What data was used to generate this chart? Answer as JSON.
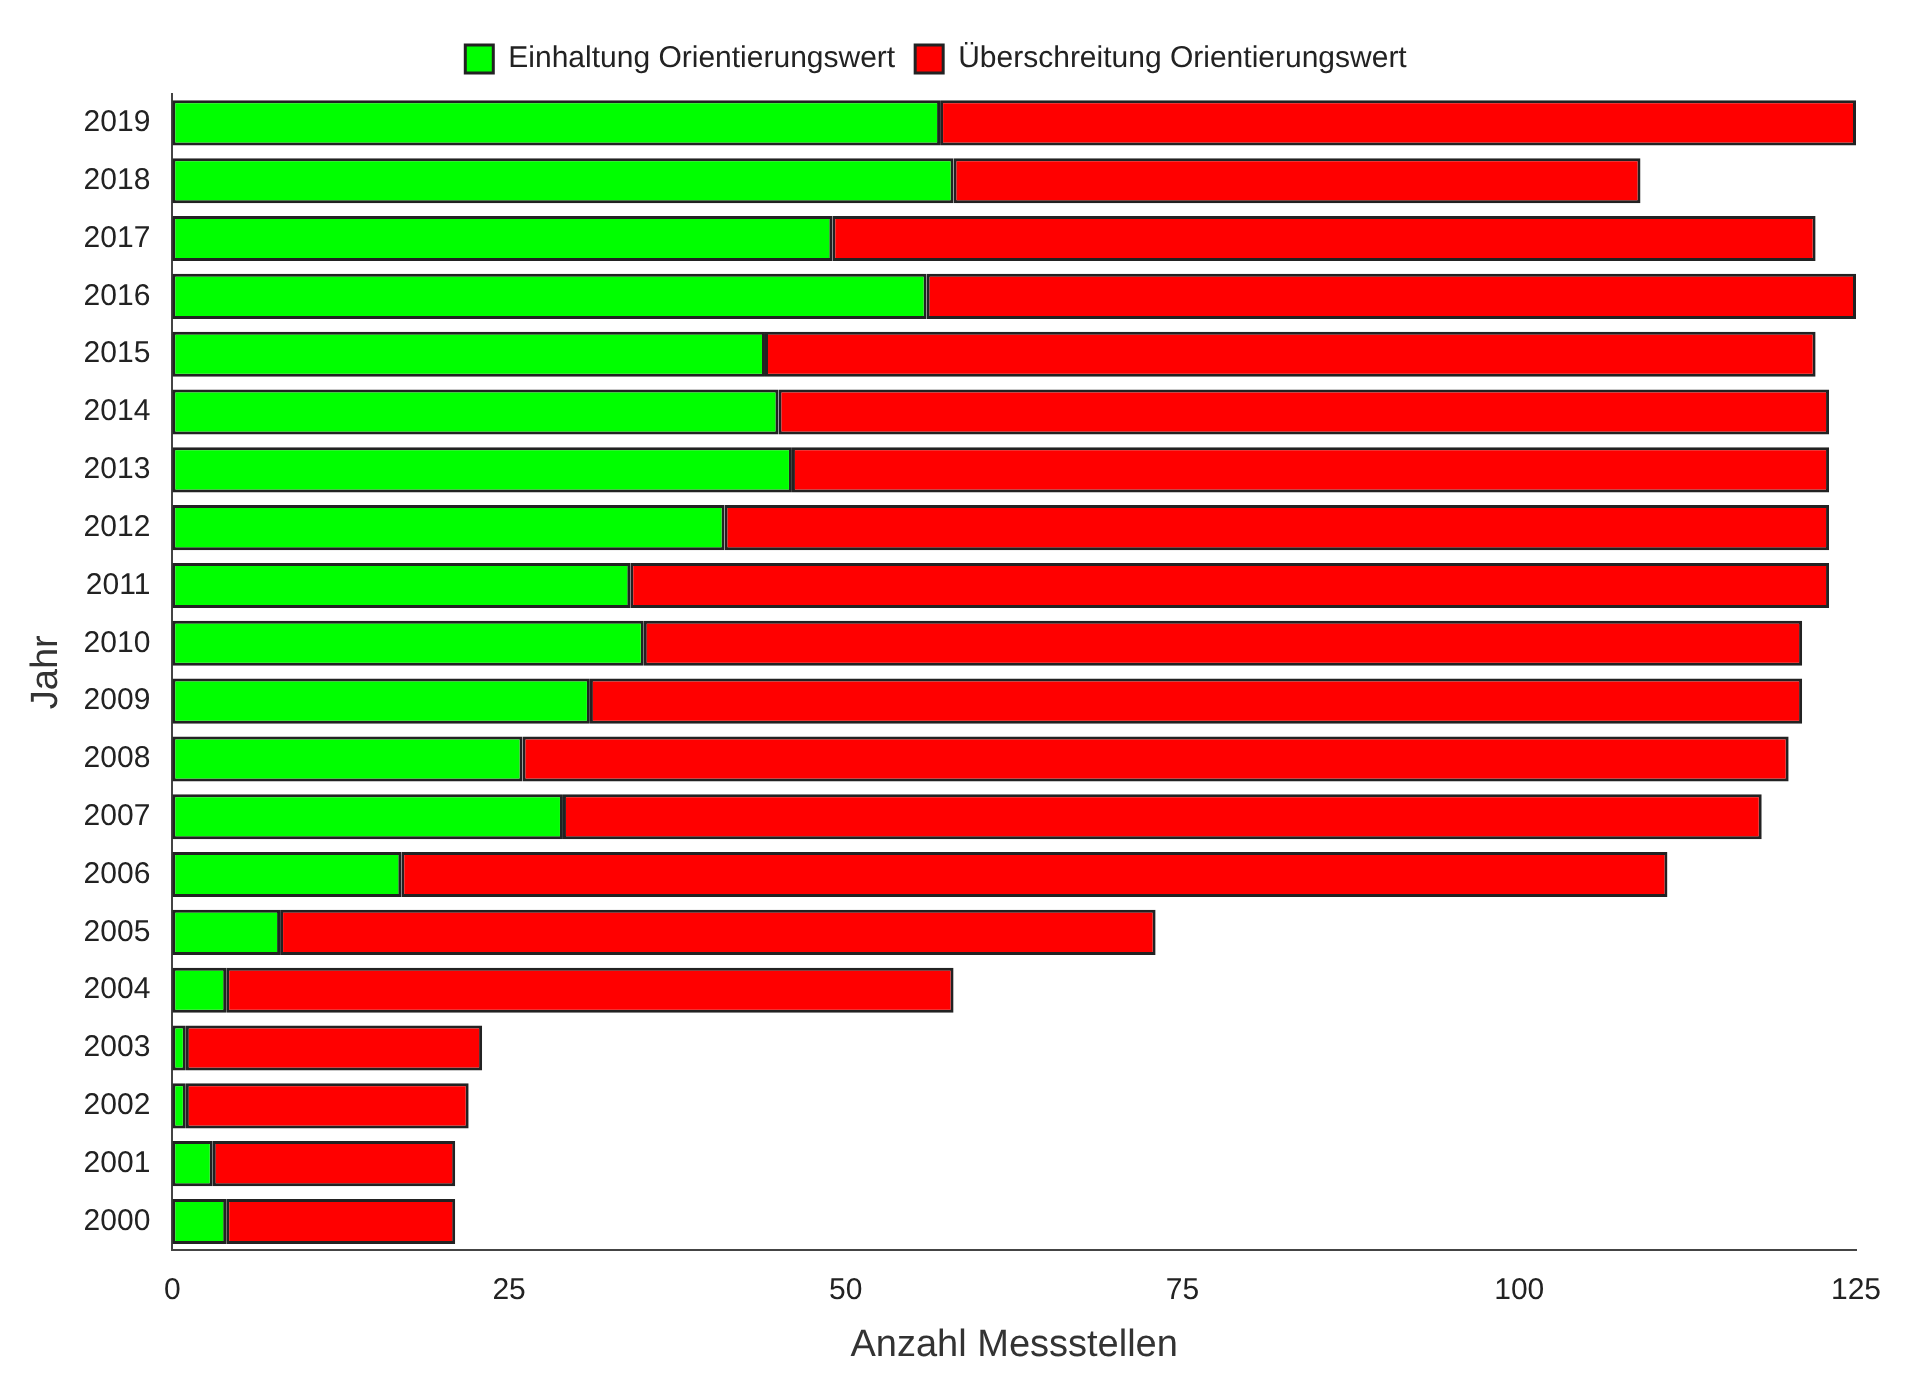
{
  "chart_data": {
    "type": "bar",
    "orientation": "horizontal",
    "stacked": true,
    "xlabel": "Anzahl Messstellen",
    "ylabel": "Jahr",
    "categories": [
      "2019",
      "2018",
      "2017",
      "2016",
      "2015",
      "2014",
      "2013",
      "2012",
      "2011",
      "2010",
      "2009",
      "2008",
      "2007",
      "2006",
      "2005",
      "2004",
      "2003",
      "2002",
      "2001",
      "2000"
    ],
    "series": [
      {
        "name": "Einhaltung Orientierungswert",
        "color": "#00ff00",
        "values": [
          57,
          58,
          49,
          56,
          44,
          45,
          46,
          41,
          34,
          35,
          31,
          26,
          29,
          17,
          8,
          4,
          1,
          1,
          3,
          4
        ]
      },
      {
        "name": "Überschreitung Orientierungswert",
        "color": "#ff0000",
        "values": [
          68,
          51,
          73,
          69,
          78,
          78,
          77,
          82,
          89,
          86,
          90,
          94,
          89,
          94,
          65,
          54,
          22,
          21,
          18,
          17
        ]
      }
    ],
    "xlim": [
      0,
      125
    ],
    "xticks": [
      0,
      25,
      50,
      75,
      100,
      125
    ],
    "grid": false,
    "legend": "top"
  }
}
